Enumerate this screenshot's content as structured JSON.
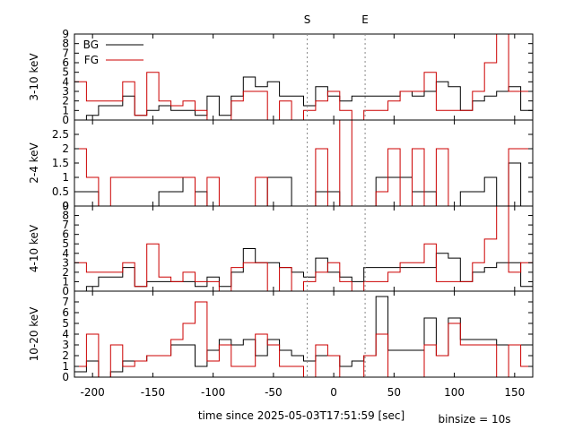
{
  "chart_data": {
    "type": "line",
    "xlabel": "time since 2025-05-03T17:51:59 [sec]",
    "note": "binsize = 10s",
    "xlim": [
      -215,
      165
    ],
    "xticks": [
      -200,
      -150,
      -100,
      -50,
      0,
      50,
      100,
      150
    ],
    "markers": [
      {
        "label": "S",
        "x": -22
      },
      {
        "label": "E",
        "x": 26
      }
    ],
    "legend": [
      {
        "name": "BG",
        "color": "#000000"
      },
      {
        "name": "FG",
        "color": "#cc0000"
      }
    ],
    "bin_starts": [
      -215,
      -205,
      -195,
      -185,
      -175,
      -165,
      -155,
      -145,
      -135,
      -125,
      -115,
      -105,
      -95,
      -85,
      -75,
      -65,
      -55,
      -45,
      -35,
      -25,
      -15,
      -5,
      5,
      15,
      25,
      35,
      45,
      55,
      65,
      75,
      85,
      95,
      105,
      115,
      125,
      135,
      145,
      155
    ],
    "panels": [
      {
        "ylabel": "3-10 keV",
        "ylim": [
          0,
          9
        ],
        "yticks": [
          0,
          1,
          2,
          3,
          4,
          5,
          6,
          7,
          8,
          9
        ],
        "series": [
          {
            "name": "BG",
            "values": [
              0,
              0.5,
              1.5,
              1.5,
              2.5,
              0.5,
              1,
              1.5,
              1,
              1,
              0.5,
              2.5,
              0.5,
              2.5,
              4.5,
              3.5,
              4,
              2.5,
              2.5,
              1.5,
              3.5,
              2.5,
              2,
              2.5,
              2.5,
              2.5,
              2.5,
              3,
              2.5,
              3,
              4,
              3.5,
              1,
              2,
              2.5,
              3,
              3.5,
              1
            ]
          },
          {
            "name": "FG",
            "values": [
              4,
              2,
              2,
              2,
              4,
              0.5,
              5,
              2,
              1.5,
              2,
              1,
              0,
              0,
              2,
              3,
              3,
              0,
              2,
              0,
              1,
              2,
              3,
              1,
              0,
              1,
              1,
              2,
              3,
              3,
              5,
              1,
              1,
              1,
              3,
              6,
              9,
              3,
              3
            ]
          }
        ]
      },
      {
        "ylabel": "2-4 keV",
        "ylim": [
          0,
          3
        ],
        "yticks": [
          0,
          0.5,
          1,
          1.5,
          2,
          2.5
        ],
        "series": [
          {
            "name": "BG",
            "values": [
              0.5,
              0.5,
              0,
              0,
              0,
              0,
              0,
              0.5,
              0.5,
              1,
              0.5,
              0,
              0,
              0,
              0,
              0,
              1,
              1,
              0,
              0,
              0.5,
              0.5,
              0,
              0,
              0,
              1,
              1,
              1,
              0.5,
              0.5,
              0,
              0,
              0.5,
              0.5,
              1,
              0,
              1.5,
              0
            ]
          },
          {
            "name": "FG",
            "values": [
              2,
              1,
              0,
              1,
              1,
              1,
              1,
              1,
              1,
              1,
              0,
              1,
              0,
              0,
              0,
              1,
              0,
              0,
              0,
              0,
              2,
              0,
              3,
              0,
              0,
              0.5,
              2,
              0,
              2,
              0,
              2,
              0,
              0,
              0,
              0,
              0,
              2,
              2
            ]
          }
        ]
      },
      {
        "ylabel": "4-10 keV",
        "ylim": [
          0,
          9
        ],
        "yticks": [
          0,
          1,
          2,
          3,
          4,
          5,
          6,
          7,
          8,
          9
        ],
        "series": [
          {
            "name": "BG",
            "values": [
              0,
              0.5,
              1.5,
              1.5,
              2.5,
              0.5,
              1,
              1,
              1,
              1,
              0.5,
              1.5,
              0.5,
              2,
              4.5,
              3,
              3,
              2.5,
              2,
              1.5,
              3.5,
              2,
              1.5,
              1,
              2.5,
              2.5,
              2.5,
              2.5,
              2.5,
              2.5,
              4,
              3.5,
              1,
              2,
              2.5,
              3,
              3,
              0.5
            ]
          },
          {
            "name": "FG",
            "values": [
              3,
              2,
              2,
              2,
              3,
              0.5,
              5,
              1.5,
              1,
              2,
              1,
              1,
              0,
              2.5,
              3,
              3,
              0,
              2.5,
              0,
              1,
              2,
              3,
              1,
              0,
              1,
              1,
              2,
              3,
              3,
              5,
              1,
              1,
              1,
              3,
              5.5,
              9,
              2,
              3
            ]
          }
        ]
      },
      {
        "ylabel": "10-20 keV",
        "ylim": [
          0,
          8
        ],
        "yticks": [
          0,
          1,
          2,
          3,
          4,
          5,
          6,
          7
        ],
        "series": [
          {
            "name": "BG",
            "values": [
              0.5,
              1.5,
              0,
              0.5,
              1.5,
              1.5,
              2,
              2,
              3,
              3,
              1,
              2.5,
              3.5,
              3,
              3.5,
              2,
              3.5,
              2.5,
              2,
              1.5,
              2,
              2,
              1,
              1.5,
              2,
              7.5,
              2.5,
              2.5,
              2.5,
              5.5,
              2,
              5.5,
              3.5,
              3.5,
              3.5,
              3,
              3,
              3
            ]
          },
          {
            "name": "FG",
            "values": [
              1,
              4,
              0,
              3,
              1,
              1.5,
              2,
              2,
              3.5,
              5,
              7,
              1.5,
              3,
              1,
              1,
              4,
              3,
              1,
              1,
              0,
              3,
              2,
              0,
              0,
              2,
              4,
              0,
              0,
              0,
              3,
              2,
              5,
              3,
              3,
              3,
              0,
              3,
              1
            ]
          }
        ]
      }
    ]
  }
}
